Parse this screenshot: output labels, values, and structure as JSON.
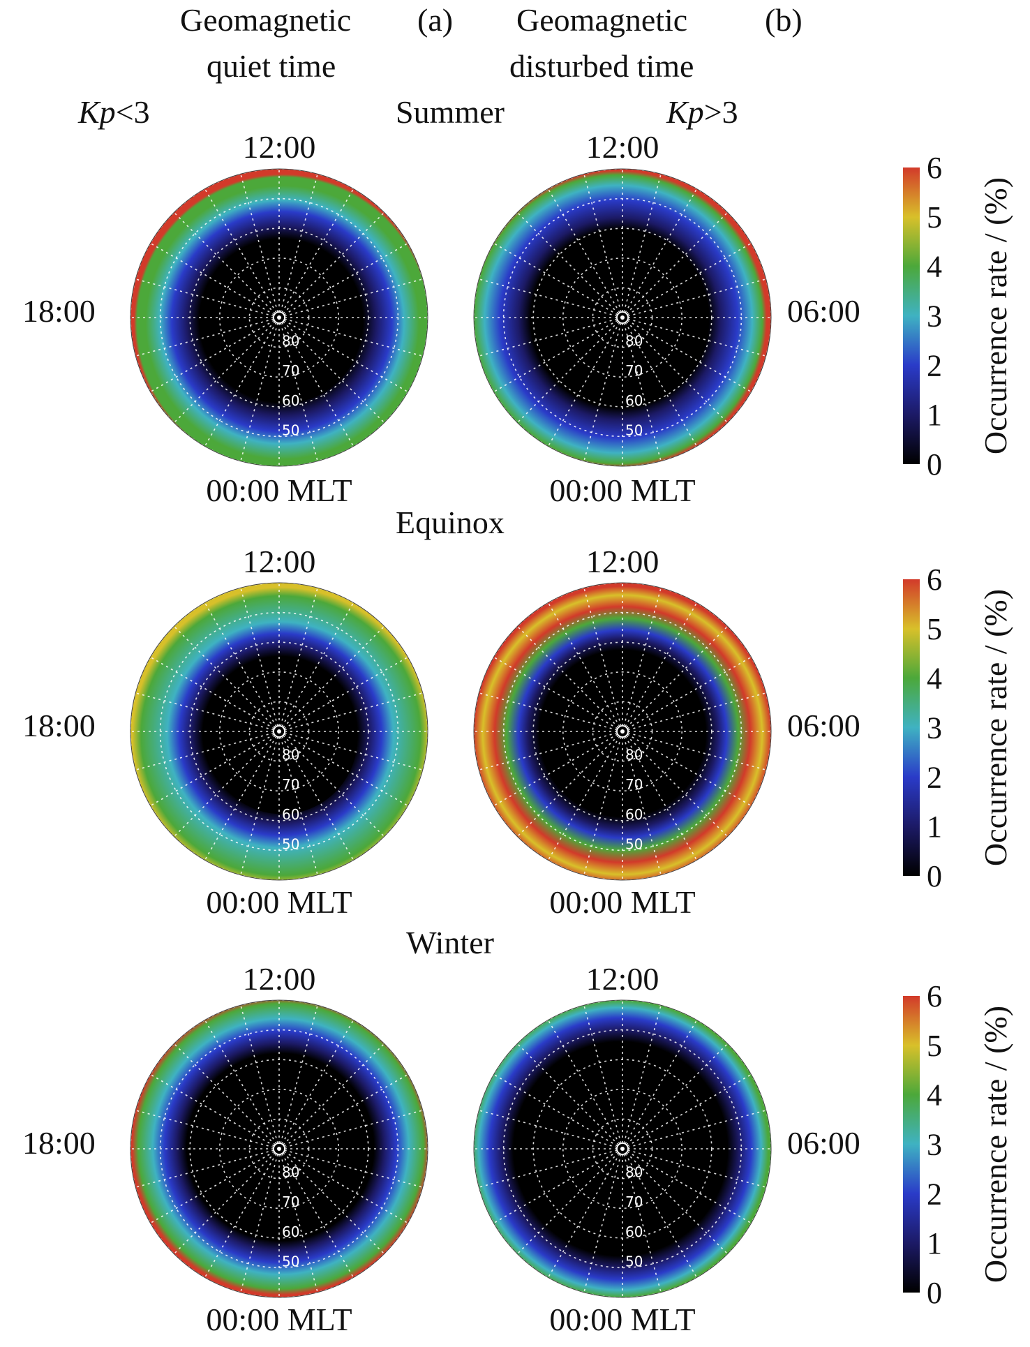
{
  "headers": {
    "col_a_line1": "Geomagnetic",
    "col_a_tag": "(a)",
    "col_a_line2": "quiet time",
    "col_b_line1": "Geomagnetic",
    "col_b_tag": "(b)",
    "col_b_line2": "disturbed time",
    "kp_a_sym": "Kp",
    "kp_a_cond": "<3",
    "kp_b_sym": "Kp",
    "kp_b_cond": ">3"
  },
  "rows": [
    {
      "season": "Summer"
    },
    {
      "season": "Equinox"
    },
    {
      "season": "Winter"
    }
  ],
  "dial_labels": {
    "top": "12:00",
    "left": "18:00",
    "right": "06:00",
    "bottom": "00:00 MLT"
  },
  "colors": {
    "scale": [
      "#000000",
      "#1c1a66",
      "#2a3bc8",
      "#3fb2c2",
      "#4ca83a",
      "#d8c02a",
      "#d23a2a"
    ]
  },
  "chart_data": {
    "type": "heatmap",
    "projection": "polar (magnetic latitude vs MLT)",
    "latitude_rings": [
      50,
      60,
      70,
      80
    ],
    "mlt_labels": [
      "12:00",
      "18:00",
      "06:00",
      "00:00 MLT"
    ],
    "colorbar": {
      "title": "Occurrence rate / (%)",
      "ticks": [
        0,
        1,
        2,
        3,
        4,
        5,
        6
      ],
      "range": [
        0,
        6
      ]
    },
    "panels": [
      {
        "row": "Summer",
        "column": "(a)",
        "condition": "Kp<3"
      },
      {
        "row": "Summer",
        "column": "(b)",
        "condition": "Kp>3"
      },
      {
        "row": "Equinox",
        "column": "(a)",
        "condition": "Kp<3"
      },
      {
        "row": "Equinox",
        "column": "(b)",
        "condition": "Kp>3"
      },
      {
        "row": "Winter",
        "column": "(a)",
        "condition": "Kp<3"
      },
      {
        "row": "Winter",
        "column": "(b)",
        "condition": "Kp>3"
      }
    ]
  }
}
